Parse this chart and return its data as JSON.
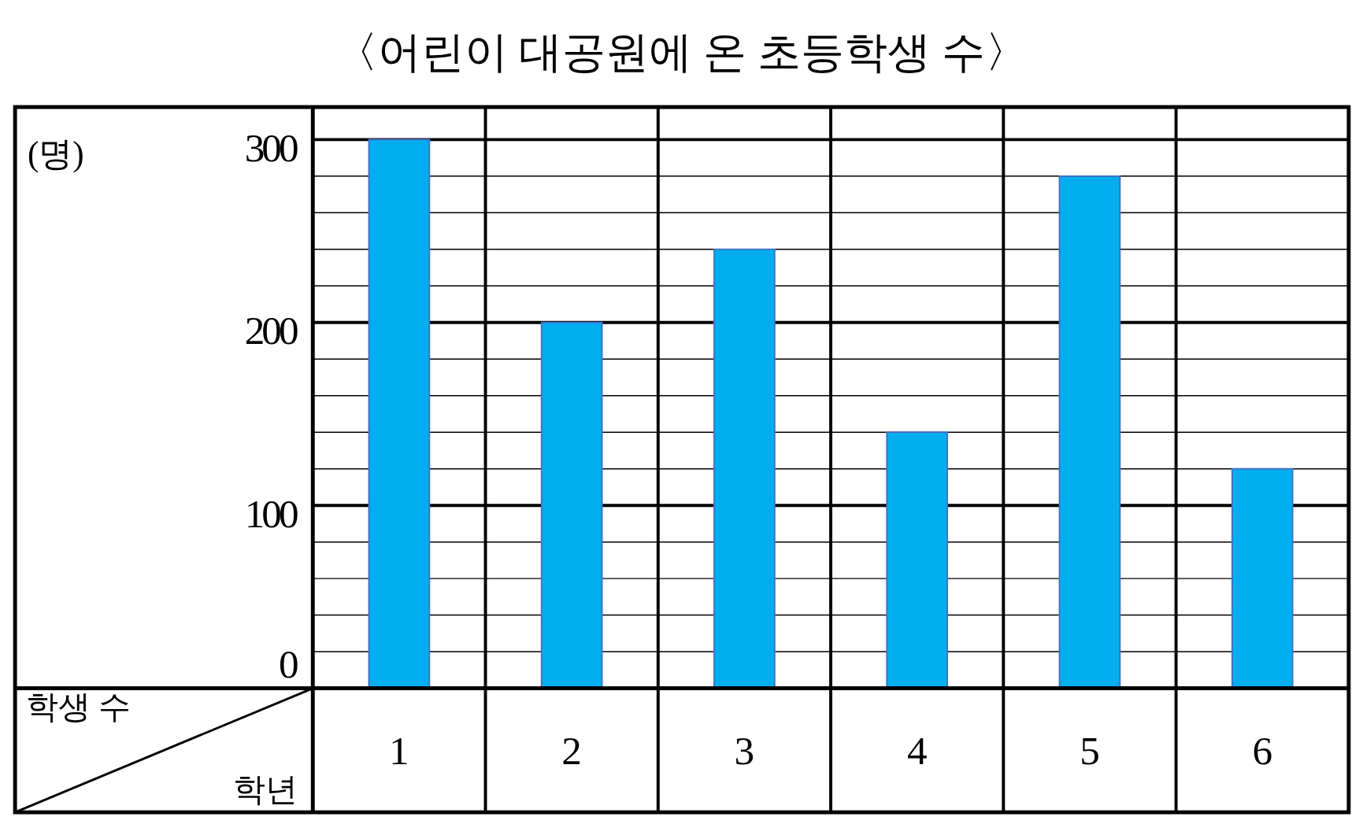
{
  "chart_data": {
    "type": "bar",
    "title": "〈어린이 대공원에 온 초등학생 수〉",
    "xlabel": "학년",
    "ylabel": "학생 수",
    "annotations": [
      "(명)"
    ],
    "categories": [
      "1",
      "2",
      "3",
      "4",
      "5",
      "6"
    ],
    "values": [
      300,
      200,
      240,
      140,
      280,
      120
    ],
    "color": "#00aeef",
    "ylim": [
      0,
      300
    ],
    "yticks": [
      0,
      {
        "value": 20,
        "label": null
      },
      {
        "value": 40,
        "label": null
      },
      {
        "value": 60,
        "label": null
      },
      {
        "value": 80,
        "label": null
      },
      100,
      {
        "value": 120,
        "label": null
      },
      {
        "value": 140,
        "label": null
      },
      {
        "value": 160,
        "label": null
      },
      {
        "value": 180,
        "label": null
      },
      200,
      {
        "value": 220,
        "label": null
      },
      {
        "value": 240,
        "label": null
      },
      {
        "value": 260,
        "label": null
      },
      {
        "value": 280,
        "label": null
      },
      300
    ],
    "grid": "y"
  }
}
